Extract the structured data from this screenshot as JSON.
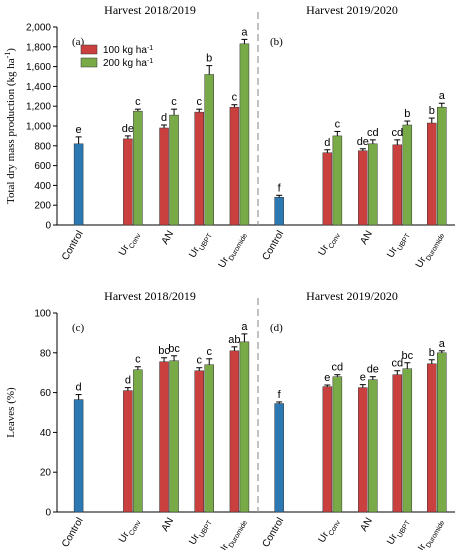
{
  "chart_data": [
    {
      "type": "bar",
      "panel": "(a)",
      "title": "Harvest 2018/2019",
      "ylabel": "Total dry mass production (kg ha",
      "ylabel_sup": "-1",
      "ylim": [
        0,
        2000
      ],
      "yticks": [
        "0",
        "200",
        "400",
        "600",
        "800",
        "1,000",
        "1,200",
        "1,400",
        "1,600",
        "1,800",
        "2,000"
      ],
      "categories": [
        {
          "main": "Control",
          "sub": ""
        },
        {
          "main": "Ur",
          "sub": "Conv"
        },
        {
          "main": "AN",
          "sub": ""
        },
        {
          "main": "Ur",
          "sub": "UBPT"
        },
        {
          "main": "Ur",
          "sub": "Duromide"
        }
      ],
      "legend": {
        "position": "top-left",
        "entries": [
          {
            "label": "100 kg ha",
            "sup": "-1",
            "color": "#c9403f"
          },
          {
            "label": "200 kg ha",
            "sup": "-1",
            "color": "#78aa48"
          }
        ]
      },
      "series": [
        {
          "name": "Control",
          "color": "#2b78b2",
          "values": [
            820,
            null,
            null,
            null,
            null
          ],
          "errors": [
            70,
            null,
            null,
            null,
            null
          ],
          "letters": [
            "e",
            null,
            null,
            null,
            null
          ]
        },
        {
          "name": "100 kg ha-1",
          "color": "#c9403f",
          "values": [
            null,
            870,
            980,
            1140,
            1190
          ],
          "errors": [
            null,
            30,
            30,
            30,
            25
          ],
          "letters": [
            null,
            "de",
            "d",
            "c",
            "c"
          ]
        },
        {
          "name": "200 kg ha-1",
          "color": "#78aa48",
          "values": [
            null,
            1150,
            1110,
            1520,
            1830
          ],
          "errors": [
            null,
            20,
            60,
            90,
            45
          ],
          "letters": [
            null,
            "c",
            "c",
            "b",
            "a"
          ]
        }
      ]
    },
    {
      "type": "bar",
      "panel": "(b)",
      "title": "Harvest 2019/2020",
      "ylim": [
        0,
        2000
      ],
      "categories": [
        {
          "main": "Control",
          "sub": ""
        },
        {
          "main": "Ur",
          "sub": "Conv"
        },
        {
          "main": "AN",
          "sub": ""
        },
        {
          "main": "Ur",
          "sub": "UBPT"
        },
        {
          "main": "Ur",
          "sub": "Duromide"
        }
      ],
      "series": [
        {
          "name": "Control",
          "color": "#2b78b2",
          "values": [
            280,
            null,
            null,
            null,
            null
          ],
          "errors": [
            20,
            null,
            null,
            null,
            null
          ],
          "letters": [
            "f",
            null,
            null,
            null,
            null
          ]
        },
        {
          "name": "100 kg ha-1",
          "color": "#c9403f",
          "values": [
            null,
            730,
            750,
            810,
            1030
          ],
          "errors": [
            null,
            30,
            20,
            50,
            50
          ],
          "letters": [
            null,
            "d",
            "de",
            "cd",
            "b"
          ]
        },
        {
          "name": "200 kg ha-1",
          "color": "#78aa48",
          "values": [
            null,
            900,
            820,
            1010,
            1190
          ],
          "errors": [
            null,
            45,
            40,
            40,
            40
          ],
          "letters": [
            null,
            "c",
            "cd",
            "b",
            "a"
          ]
        }
      ]
    },
    {
      "type": "bar",
      "panel": "(c)",
      "title": "Harvest 2018/2019",
      "ylabel": "Leaves (%)",
      "ylim": [
        0,
        100
      ],
      "yticks": [
        "0",
        "20",
        "40",
        "60",
        "80",
        "100"
      ],
      "categories": [
        {
          "main": "Control",
          "sub": ""
        },
        {
          "main": "Ur",
          "sub": "Conv"
        },
        {
          "main": "AN",
          "sub": ""
        },
        {
          "main": "Ur",
          "sub": "UBPT"
        },
        {
          "main": "Ur",
          "sub": "Duromide"
        }
      ],
      "series": [
        {
          "name": "Control",
          "color": "#2b78b2",
          "values": [
            56.5,
            null,
            null,
            null,
            null
          ],
          "errors": [
            2.5,
            null,
            null,
            null,
            null
          ],
          "letters": [
            "d",
            null,
            null,
            null,
            null
          ]
        },
        {
          "name": "100 kg ha-1",
          "color": "#c9403f",
          "values": [
            null,
            61,
            75.5,
            71,
            81
          ],
          "errors": [
            null,
            1.5,
            2,
            1.5,
            2
          ],
          "letters": [
            null,
            "d",
            "bc",
            "c",
            "ab"
          ]
        },
        {
          "name": "200 kg ha-1",
          "color": "#78aa48",
          "values": [
            null,
            71.5,
            76,
            74,
            85.5
          ],
          "errors": [
            null,
            1.5,
            2.5,
            3,
            4
          ],
          "letters": [
            null,
            "c",
            "bc",
            "c",
            "a"
          ]
        }
      ]
    },
    {
      "type": "bar",
      "panel": "(d)",
      "title": "Harvest 2019/2020",
      "ylim": [
        0,
        100
      ],
      "categories": [
        {
          "main": "Control",
          "sub": ""
        },
        {
          "main": "Ur",
          "sub": "Conv"
        },
        {
          "main": "AN",
          "sub": ""
        },
        {
          "main": "Ur",
          "sub": "UBPT"
        },
        {
          "main": "Ur",
          "sub": "Duromide"
        }
      ],
      "series": [
        {
          "name": "Control",
          "color": "#2b78b2",
          "values": [
            54.5,
            null,
            null,
            null,
            null
          ],
          "errors": [
            0.8,
            null,
            null,
            null,
            null
          ],
          "letters": [
            "f",
            null,
            null,
            null,
            null
          ]
        },
        {
          "name": "100 kg ha-1",
          "color": "#c9403f",
          "values": [
            null,
            63,
            62.5,
            69,
            74.5
          ],
          "errors": [
            null,
            0.8,
            1.5,
            2,
            2
          ],
          "letters": [
            null,
            "e",
            "e",
            "cd",
            "b"
          ]
        },
        {
          "name": "200 kg ha-1",
          "color": "#78aa48",
          "values": [
            null,
            68,
            66.5,
            72,
            80
          ],
          "errors": [
            null,
            1,
            1.5,
            3,
            1
          ],
          "letters": [
            null,
            "cd",
            "de",
            "bc",
            "a"
          ]
        }
      ]
    }
  ]
}
